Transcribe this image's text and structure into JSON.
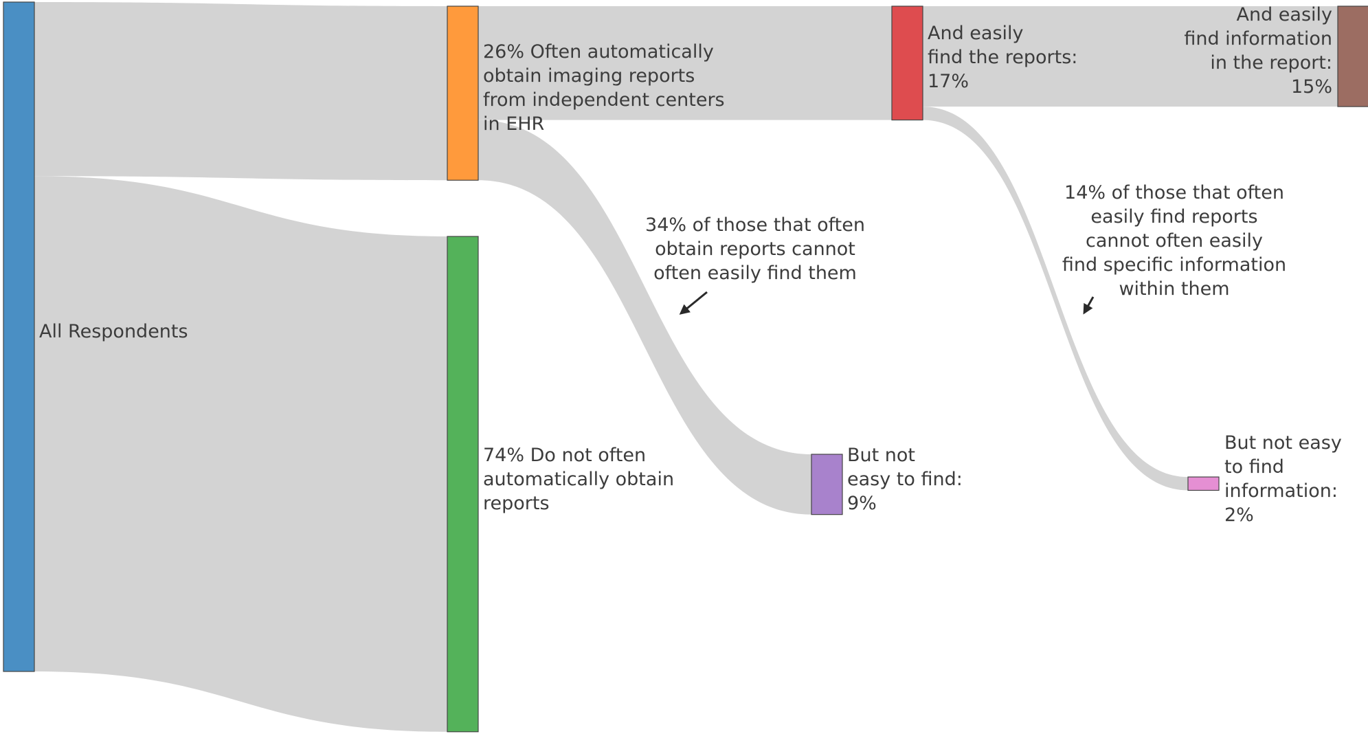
{
  "chart_data": {
    "type": "sankey",
    "nodes": [
      {
        "id": "all",
        "label_lines": [
          "All Respondents"
        ],
        "value": 100,
        "color": "#4a8fc4"
      },
      {
        "id": "obtain",
        "label_lines": [
          "26% Often automatically",
          "obtain imaging reports",
          "from independent centers",
          "in EHR"
        ],
        "value": 26,
        "color": "#ff9a3c"
      },
      {
        "id": "not_obtain",
        "label_lines": [
          "74% Do not often",
          "automatically obtain",
          "reports"
        ],
        "value": 74,
        "color": "#54b25a"
      },
      {
        "id": "find",
        "label_lines": [
          "And easily",
          "find the reports:",
          "17%"
        ],
        "value": 17,
        "color": "#de4c4f"
      },
      {
        "id": "not_find",
        "label_lines": [
          "But not",
          "easy to find:",
          "9%"
        ],
        "value": 9,
        "color": "#a882cc"
      },
      {
        "id": "find_info",
        "label_lines": [
          "And easily",
          "find information",
          "in the report:",
          "15%"
        ],
        "value": 15,
        "color": "#9c6d62"
      },
      {
        "id": "not_find_info",
        "label_lines": [
          "But not easy",
          "to find",
          "information:",
          "2%"
        ],
        "value": 2,
        "color": "#e58fd3"
      }
    ],
    "links": [
      {
        "source": "all",
        "target": "obtain",
        "value": 26
      },
      {
        "source": "all",
        "target": "not_obtain",
        "value": 74
      },
      {
        "source": "obtain",
        "target": "find",
        "value": 17
      },
      {
        "source": "obtain",
        "target": "not_find",
        "value": 9
      },
      {
        "source": "find",
        "target": "find_info",
        "value": 15
      },
      {
        "source": "find",
        "target": "not_find_info",
        "value": 2
      }
    ],
    "annotations": [
      {
        "id": "ann1",
        "lines": [
          "34% of those that often",
          "obtain reports cannot",
          "often easily find them"
        ]
      },
      {
        "id": "ann2",
        "lines": [
          "14% of those that often",
          "easily find reports",
          "cannot often easily",
          "find specific information",
          "within them"
        ]
      }
    ],
    "link_color": "#d3d3d3"
  }
}
